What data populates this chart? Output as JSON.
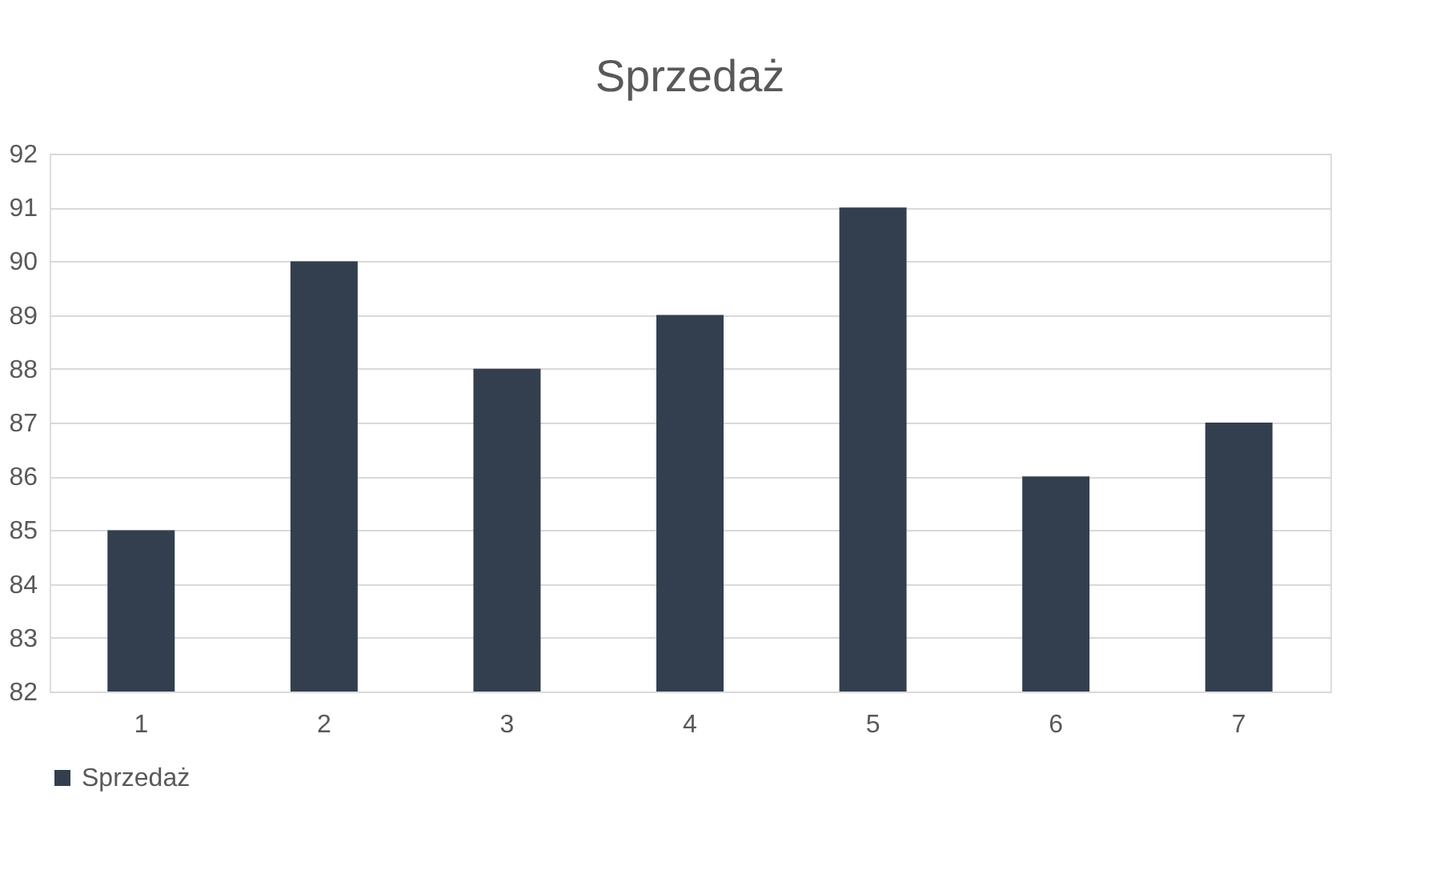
{
  "chart_data": {
    "type": "bar",
    "title": "Sprzedaż",
    "categories": [
      "1",
      "2",
      "3",
      "4",
      "5",
      "6",
      "7"
    ],
    "series": [
      {
        "name": "Sprzedaż",
        "color": "#333f4f",
        "values": [
          85,
          90,
          88,
          89,
          91,
          86,
          87
        ]
      }
    ],
    "ylim": [
      82,
      92
    ],
    "yticks": [
      82,
      83,
      84,
      85,
      86,
      87,
      88,
      89,
      90,
      91,
      92
    ],
    "grid": "y",
    "legend": "bottom"
  }
}
